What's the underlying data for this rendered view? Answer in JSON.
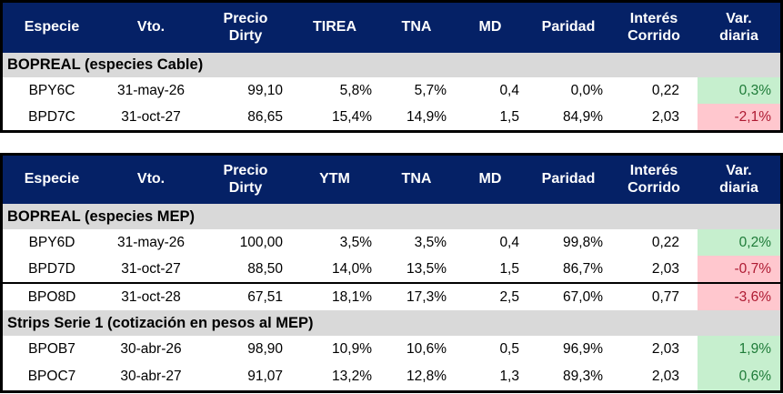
{
  "colors": {
    "header_bg": "#052166",
    "header_text": "#FFFFFF",
    "section_bg": "#D9D9D9",
    "positive_bg": "#C6EFCE",
    "positive_text": "#1E7B38",
    "negative_bg": "#FFC7CE",
    "negative_text": "#AE1A32",
    "border": "#000000"
  },
  "chart_data": [
    {
      "type": "table",
      "columns": [
        "Especie",
        "Vto.",
        "Precio\nDirty",
        "TIREA",
        "TNA",
        "MD",
        "Paridad",
        "Interés\nCorrido",
        "Var.\ndiaria"
      ],
      "sections": [
        {
          "label": "BOPREAL (especies Cable)",
          "rows": [
            [
              "BPY6C",
              "31-may-26",
              "99,10",
              "5,8%",
              "5,7%",
              "0,4",
              "0,0%",
              "0,22",
              "0,3%"
            ],
            [
              "BPD7C",
              "31-oct-27",
              "86,65",
              "15,4%",
              "14,9%",
              "1,5",
              "84,9%",
              "2,03",
              "-2,1%"
            ]
          ],
          "var_direction": [
            "up",
            "down"
          ]
        }
      ]
    },
    {
      "type": "table",
      "columns": [
        "Especie",
        "Vto.",
        "Precio\nDirty",
        "YTM",
        "TNA",
        "MD",
        "Paridad",
        "Interés\nCorrido",
        "Var.\ndiaria"
      ],
      "sections": [
        {
          "label": "BOPREAL (especies MEP)",
          "rows": [
            [
              "BPY6D",
              "31-may-26",
              "100,00",
              "3,5%",
              "3,5%",
              "0,4",
              "99,8%",
              "0,22",
              "0,2%"
            ],
            [
              "BPD7D",
              "31-oct-27",
              "88,50",
              "14,0%",
              "13,5%",
              "1,5",
              "86,7%",
              "2,03",
              "-0,7%"
            ],
            [
              "BPO8D",
              "31-oct-28",
              "67,51",
              "18,1%",
              "17,3%",
              "2,5",
              "67,0%",
              "0,77",
              "-3,6%"
            ]
          ],
          "var_direction": [
            "up",
            "down",
            "down"
          ]
        },
        {
          "label": "Strips Serie 1 (cotización en pesos al MEP)",
          "rows": [
            [
              "BPOB7",
              "30-abr-26",
              "98,90",
              "10,9%",
              "10,6%",
              "0,5",
              "96,9%",
              "2,03",
              "1,9%"
            ],
            [
              "BPOC7",
              "30-abr-27",
              "91,07",
              "13,2%",
              "12,8%",
              "1,3",
              "89,3%",
              "2,03",
              "0,6%"
            ]
          ],
          "var_direction": [
            "up",
            "up"
          ]
        }
      ]
    }
  ]
}
